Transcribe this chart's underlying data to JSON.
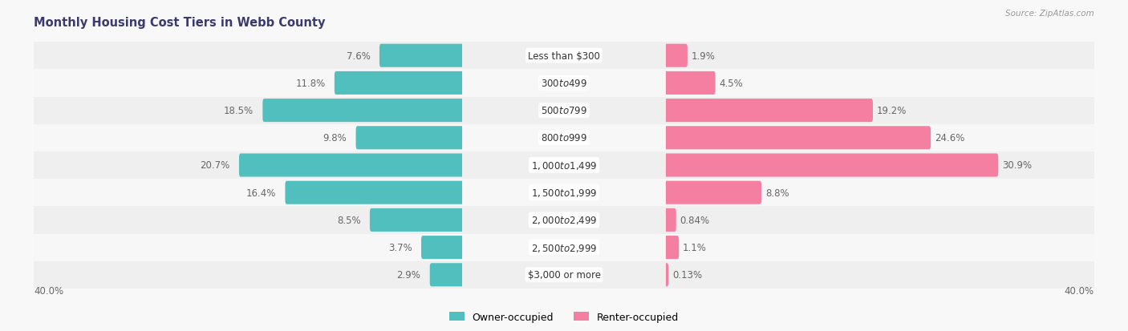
{
  "title": "Monthly Housing Cost Tiers in Webb County",
  "source": "Source: ZipAtlas.com",
  "categories": [
    "Less than $300",
    "$300 to $499",
    "$500 to $799",
    "$800 to $999",
    "$1,000 to $1,499",
    "$1,500 to $1,999",
    "$2,000 to $2,499",
    "$2,500 to $2,999",
    "$3,000 or more"
  ],
  "owner_values": [
    7.6,
    11.8,
    18.5,
    9.8,
    20.7,
    16.4,
    8.5,
    3.7,
    2.9
  ],
  "renter_values": [
    1.9,
    4.5,
    19.2,
    24.6,
    30.9,
    8.8,
    0.84,
    1.1,
    0.13
  ],
  "owner_color": "#52BFBF",
  "renter_color": "#F47FA0",
  "owner_label": "Owner-occupied",
  "renter_label": "Renter-occupied",
  "axis_limit": 40.0,
  "title_color": "#3a3a6e",
  "label_fontsize": 8.5,
  "title_fontsize": 10.5,
  "bar_height": 0.55,
  "row_colors": [
    "#efefef",
    "#f7f7f7"
  ]
}
